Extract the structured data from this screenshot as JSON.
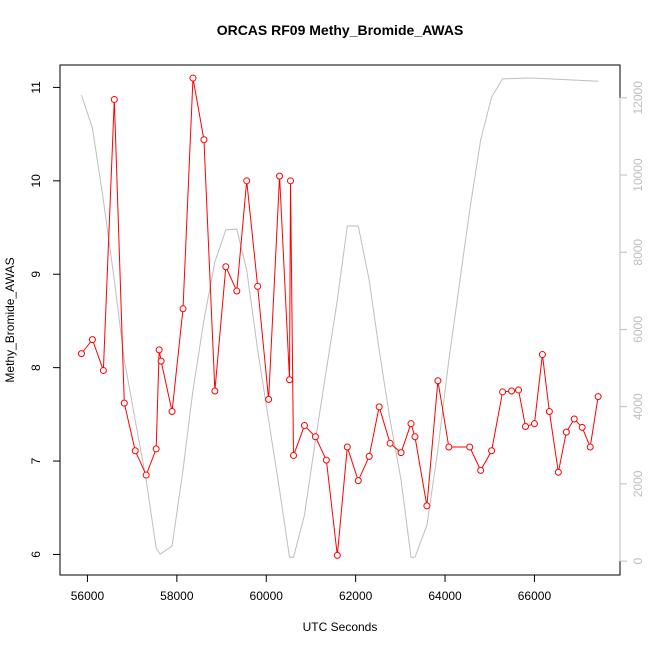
{
  "chart_data": {
    "type": "line",
    "title": "ORCAS RF09 Methy_Bromide_AWAS",
    "x_label": "UTC Seconds",
    "y_label": "Methy_Bromide_AWAS",
    "xlim": [
      55386,
      67914
    ],
    "xticks": [
      56000,
      58000,
      60000,
      62000,
      64000,
      66000
    ],
    "ylim": [
      5.78,
      11.24
    ],
    "yticks": [
      6,
      7,
      8,
      9,
      10,
      11
    ],
    "y2lim": [
      -360,
      12850
    ],
    "y2ticks": [
      0,
      2000,
      4000,
      6000,
      8000,
      10000,
      12000
    ],
    "y2color": "#bebebe",
    "series": [
      {
        "color": "#bebebe",
        "axis": "y2",
        "markers": false,
        "x": [
          55866,
          56111,
          56356,
          56601,
          56824,
          57069,
          57314,
          57537,
          57626,
          57893,
          58138,
          58361,
          58606,
          58851,
          59096,
          59341,
          59563,
          59808,
          60053,
          60298,
          60521,
          60610,
          60855,
          61100,
          61345,
          61590,
          61813,
          62058,
          62303,
          62526,
          62771,
          63016,
          63238,
          63327,
          63594,
          63840,
          64085,
          64552,
          64797,
          65042,
          65287,
          65800,
          66000,
          67425
        ],
        "values": [
          12070,
          11220,
          9350,
          7280,
          5210,
          3650,
          2100,
          340,
          180,
          390,
          2360,
          4430,
          6240,
          7750,
          8580,
          8600,
          7540,
          5470,
          3650,
          1840,
          100,
          100,
          1190,
          3130,
          4950,
          6760,
          8680,
          8680,
          7280,
          5470,
          3650,
          2100,
          100,
          100,
          930,
          2880,
          5210,
          9090,
          10910,
          12020,
          12490,
          12510,
          12510,
          12430
        ]
      },
      {
        "color": "#ff0000",
        "axis": "y",
        "markers": true,
        "x": [
          55866,
          56111,
          56356,
          56601,
          56824,
          57069,
          57314,
          57537,
          57604,
          57648,
          57893,
          58138,
          58361,
          58606,
          58851,
          59096,
          59341,
          59563,
          59808,
          60053,
          60298,
          60521,
          60543,
          60610,
          60855,
          61100,
          61345,
          61590,
          61813,
          62058,
          62303,
          62526,
          62771,
          63016,
          63238,
          63327,
          63594,
          63840,
          64085,
          64552,
          64797,
          65042,
          65287,
          65488,
          65644,
          65800,
          66000,
          66178,
          66334,
          66535,
          66713,
          66890,
          67069,
          67247,
          67425
        ],
        "values": [
          8.15,
          8.3,
          7.97,
          10.87,
          7.62,
          7.11,
          6.85,
          7.13,
          8.19,
          8.07,
          7.53,
          8.63,
          11.1,
          10.44,
          7.75,
          9.08,
          8.82,
          10.0,
          8.87,
          7.66,
          10.05,
          7.87,
          10.0,
          7.06,
          7.38,
          7.26,
          7.01,
          5.99,
          7.15,
          6.79,
          7.05,
          7.58,
          7.19,
          7.09,
          7.4,
          7.26,
          6.52,
          7.86,
          7.15,
          7.15,
          6.9,
          7.11,
          7.74,
          7.75,
          7.76,
          7.37,
          7.4,
          8.14,
          7.53,
          6.88,
          7.31,
          7.45,
          7.36,
          7.15,
          7.69
        ]
      }
    ]
  }
}
